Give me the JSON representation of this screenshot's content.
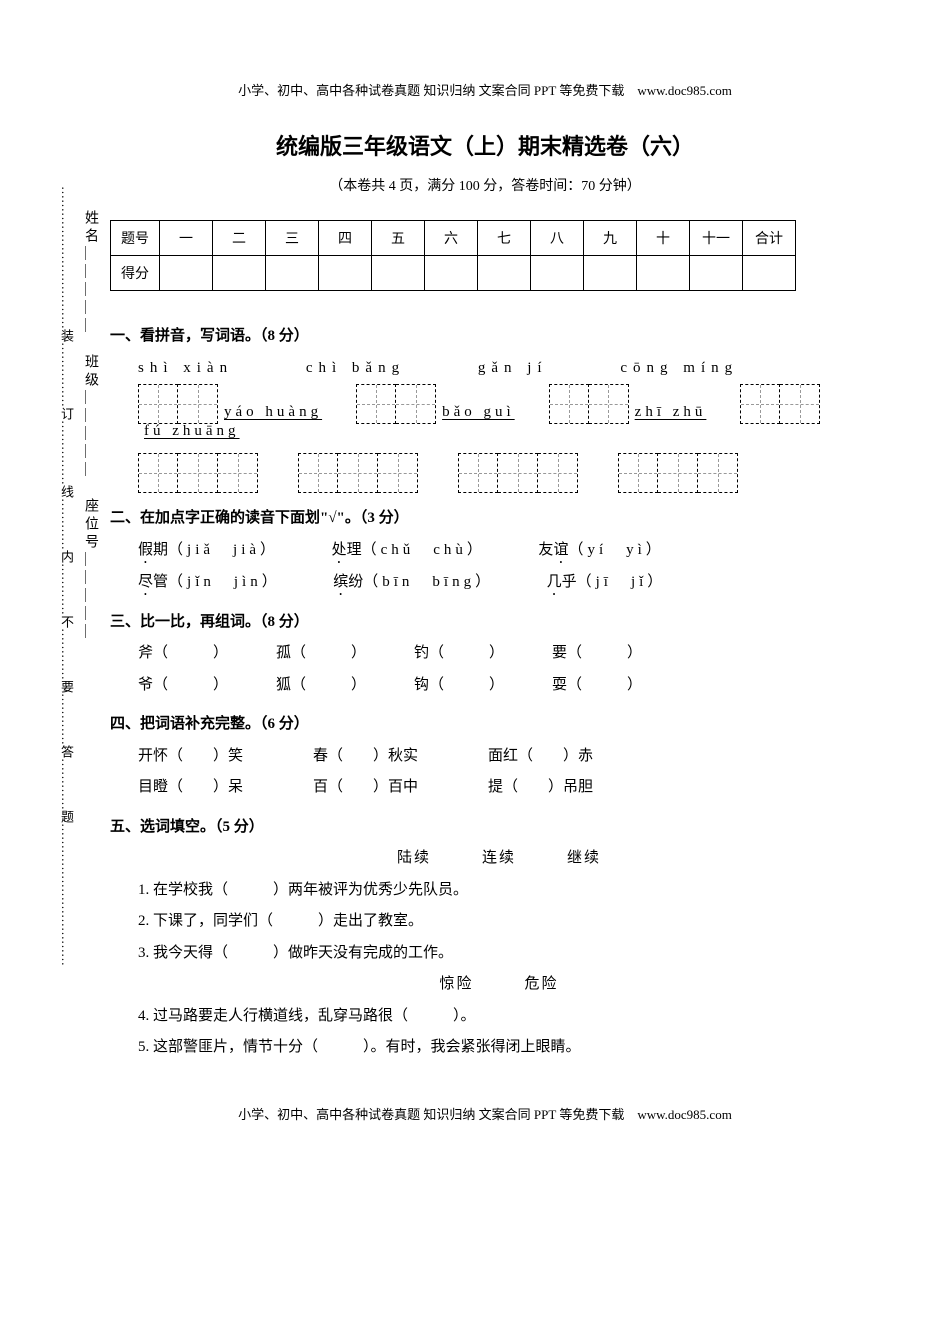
{
  "meta": {
    "header_note": "小学、初中、高中各种试卷真题 知识归纳 文案合同 PPT 等免费下载　www.doc985.com",
    "footer_note": "小学、初中、高中各种试卷真题 知识归纳 文案合同 PPT 等免费下载　www.doc985.com",
    "title": "统编版三年级语文（上）期末精选卷（六）",
    "subtitle": "（本卷共 4 页，满分 100 分，答卷时间：70 分钟）"
  },
  "binding": {
    "dots": "……………………………装……………订……………线…………内…………不…………要…………答…………题……………………………",
    "labels": "姓名＿＿＿＿＿　班级＿＿＿＿＿　座位号＿＿＿＿＿"
  },
  "score_table": {
    "row1": [
      "题号",
      "一",
      "二",
      "三",
      "四",
      "五",
      "六",
      "七",
      "八",
      "九",
      "十",
      "十一",
      "合计"
    ],
    "row2_label": "得分"
  },
  "sections": {
    "s1": {
      "head": "一、看拼音，写词语。（8 分）",
      "line1_words": [
        "shì xiàn",
        "chì bǎng",
        "gǎn jí",
        "cōng míng"
      ],
      "mix_words": [
        "yáo huàng",
        "bǎo guì",
        "zhī zhū",
        "fú zhuāng"
      ]
    },
    "s2": {
      "head": "二、在加点字正确的读音下面划\"√\"。（3 分）",
      "items": [
        {
          "word": "假期",
          "dot": "假",
          "pinyin": "（jiǎ　jià）"
        },
        {
          "word": "处理",
          "dot": "处",
          "pinyin": "（chǔ　chù）"
        },
        {
          "word": "友谊",
          "dot": "谊",
          "pinyin": "（yí　yì）"
        },
        {
          "word": "尽管",
          "dot": "尽",
          "pinyin": "（jǐn　jìn）"
        },
        {
          "word": "缤纷",
          "dot": "缤",
          "pinyin": "（bīn　bīng）"
        },
        {
          "word": "几乎",
          "dot": "几",
          "pinyin": "（jī　jǐ）"
        }
      ]
    },
    "s3": {
      "head": "三、比一比，再组词。（8 分）",
      "pairs": [
        [
          "斧（　　　）",
          "爷（　　　）"
        ],
        [
          "孤（　　　）",
          "狐（　　　）"
        ],
        [
          "钓（　　　）",
          "钩（　　　）"
        ],
        [
          "要（　　　）",
          "耍（　　　）"
        ]
      ]
    },
    "s4": {
      "head": "四、把词语补充完整。（6 分）",
      "row1": [
        "开怀（　　）笑",
        "春（　　）秋实",
        "面红（　　）赤"
      ],
      "row2": [
        "目瞪（　　）呆",
        "百（　　）百中",
        "提（　　）吊胆"
      ]
    },
    "s5": {
      "head": "五、选词填空。（5 分）",
      "group1_words": "陆续　　　连续　　　继续",
      "q1": "1. 在学校我（　　　）两年被评为优秀少先队员。",
      "q2": "2. 下课了，同学们（　　　）走出了教室。",
      "q3": "3. 我今天得（　　　）做昨天没有完成的工作。",
      "group2_words": "惊险　　　危险",
      "q4": "4. 过马路要走人行横道线，乱穿马路很（　　　）。",
      "q5": "5. 这部警匪片，情节十分（　　　）。有时，我会紧张得闭上眼睛。"
    }
  }
}
